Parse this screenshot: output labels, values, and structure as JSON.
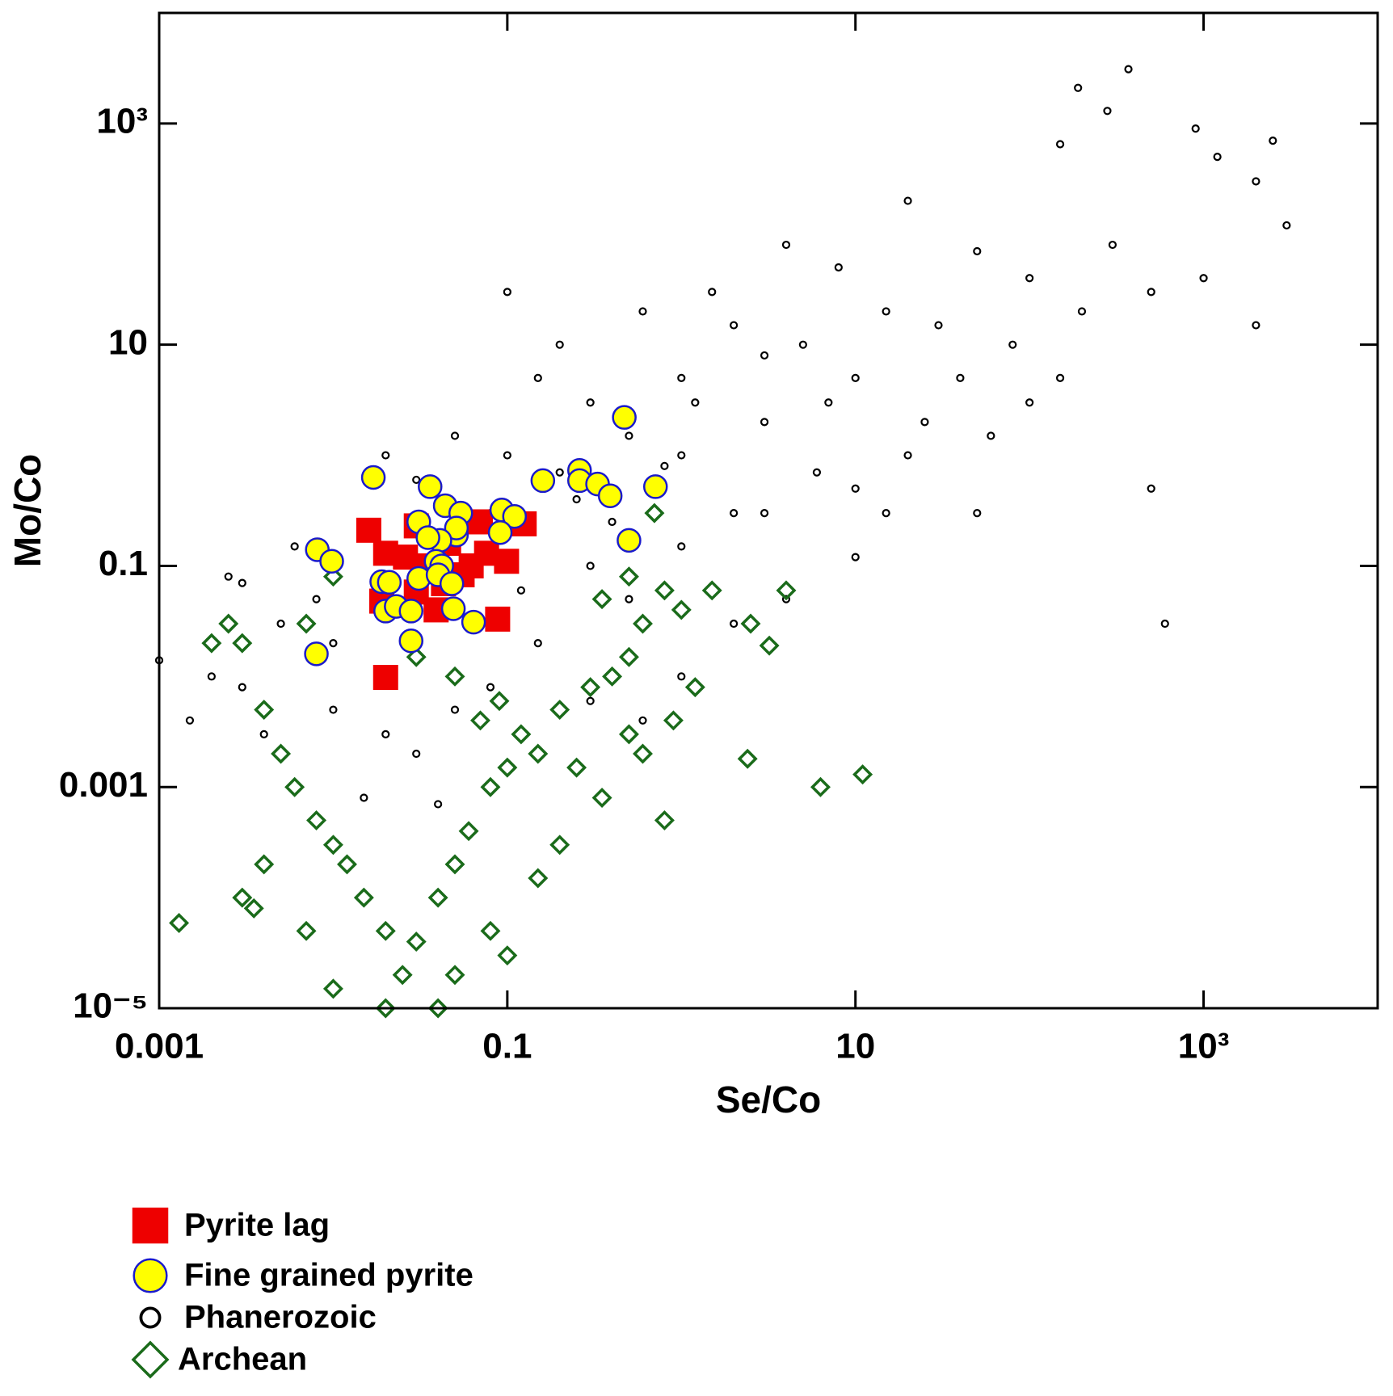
{
  "chart_data": {
    "type": "scatter",
    "x_label": "Se/Co",
    "y_label": "Mo/Co",
    "xscale": "log",
    "yscale": "log",
    "xlim": [
      0.001,
      10000
    ],
    "ylim": [
      1e-05,
      10000
    ],
    "xticks": [
      0.001,
      0.1,
      10,
      {
        "value": 1000,
        "label": "10³"
      }
    ],
    "yticks": [
      {
        "value": 1e-05,
        "label": "10⁻⁵"
      },
      0.001,
      0.1,
      10,
      {
        "value": 1000,
        "label": "10³"
      }
    ],
    "series": [
      {
        "name": "Pyrite lag",
        "marker": "square",
        "color": "#ee0000",
        "edgecolor": "#ee0000",
        "zorder": 3,
        "x": [
          0.016,
          0.02,
          0.03,
          0.046,
          0.07,
          0.125,
          0.076,
          0.099,
          0.026,
          0.034,
          0.062,
          0.043,
          0.019,
          0.039,
          0.088,
          0.02,
          0.03,
          0.055
        ],
        "values": [
          0.21,
          0.13,
          0.23,
          0.16,
          0.25,
          0.24,
          0.13,
          0.11,
          0.12,
          0.1,
          0.1,
          0.069,
          0.048,
          0.04,
          0.033,
          0.0098,
          0.058,
          0.083
        ]
      },
      {
        "name": "Fine grained pyrite",
        "marker": "circle",
        "color": "#ffff00",
        "edgecolor": "#1a1acc",
        "zorder": 4,
        "x": [
          0.017,
          0.036,
          0.16,
          0.26,
          0.26,
          0.33,
          0.39,
          0.47,
          0.71,
          0.5,
          0.0081,
          0.0098,
          0.031,
          0.044,
          0.054,
          0.051,
          0.051,
          0.041,
          0.093,
          0.11,
          0.091,
          0.035,
          0.039,
          0.042,
          0.031,
          0.04,
          0.048,
          0.019,
          0.021,
          0.02,
          0.023,
          0.028,
          0.049,
          0.064,
          0.028,
          0.008
        ],
        "values": [
          0.63,
          0.52,
          0.59,
          0.73,
          0.59,
          0.55,
          0.43,
          2.2,
          0.52,
          0.17,
          0.14,
          0.11,
          0.25,
          0.35,
          0.3,
          0.19,
          0.22,
          0.17,
          0.32,
          0.28,
          0.2,
          0.18,
          0.11,
          0.1,
          0.077,
          0.083,
          0.069,
          0.072,
          0.071,
          0.039,
          0.043,
          0.039,
          0.041,
          0.031,
          0.021,
          0.016
        ]
      },
      {
        "name": "Phanerozoic",
        "marker": "circle",
        "color": "none",
        "edgecolor": "#000000",
        "zorder": 1,
        "x": [
          370,
          190,
          280,
          150,
          900,
          2500,
          2000,
          1200,
          3000,
          8,
          20,
          50,
          100,
          300,
          15,
          5,
          30,
          80,
          200,
          500,
          1000,
          1,
          2,
          3,
          10,
          40,
          150,
          60,
          20,
          6,
          3,
          1,
          0.5,
          0.3,
          0.2,
          0.1,
          0.08,
          0.05,
          0.03,
          0.02,
          0.2,
          0.1,
          0.15,
          1.5,
          4,
          0.6,
          0.3,
          0.5,
          1,
          2,
          4,
          10,
          50,
          500,
          600,
          0.005,
          0.003,
          0.004,
          0.002,
          0.0015,
          0.001,
          0.01,
          0.02,
          0.03,
          0.05,
          0.08,
          0.15,
          0.3,
          0.6,
          1,
          2,
          0.04,
          0.015,
          0.01,
          0.008,
          0.006,
          0.003,
          0.0025,
          10,
          25,
          100,
          7,
          0.8,
          0.4,
          0.25,
          0.12,
          1.2,
          3,
          15,
          2000
        ],
        "values": [
          3100,
          2100,
          1300,
          650,
          900,
          700,
          300,
          500,
          120,
          50,
          200,
          70,
          40,
          80,
          20,
          10,
          15,
          10,
          20,
          30,
          40,
          5,
          15,
          8,
          5,
          5,
          5,
          1.5,
          1,
          0.7,
          2,
          1,
          1.5,
          3,
          0.7,
          1,
          0.3,
          1.5,
          0.6,
          1,
          10,
          30,
          5,
          30,
          80,
          20,
          0.1,
          0.05,
          0.15,
          0.3,
          0.05,
          0.12,
          0.3,
          0.5,
          0.03,
          0.03,
          0.008,
          0.003,
          0.01,
          0.004,
          0.014,
          0.005,
          0.003,
          0.002,
          0.005,
          0.008,
          0.02,
          0.006,
          0.004,
          0.01,
          0.03,
          0.0007,
          0.0008,
          0.02,
          0.05,
          0.15,
          0.07,
          0.08,
          0.5,
          2,
          3,
          3,
          0.8,
          0.25,
          0.4,
          0.06,
          3,
          0.3,
          0.3,
          15
        ]
      },
      {
        "name": "Archean",
        "marker": "diamond",
        "color": "none",
        "edgecolor": "#1a6b1a",
        "zorder": 2,
        "x": [
          0.0025,
          0.003,
          0.004,
          0.005,
          0.006,
          0.008,
          0.01,
          0.012,
          0.015,
          0.02,
          0.025,
          0.03,
          0.04,
          0.05,
          0.06,
          0.08,
          0.1,
          0.12,
          0.15,
          0.2,
          0.3,
          0.4,
          0.5,
          0.6,
          0.25,
          0.35,
          0.8,
          0.2,
          0.15,
          0.1,
          0.08,
          0.05,
          0.04,
          0.02,
          0.01,
          0.007,
          0.0013,
          0.0035,
          0.004,
          0.003,
          0.002,
          0.007,
          0.01,
          0.02,
          0.03,
          0.05,
          0.07,
          0.09,
          0.6,
          0.8,
          1,
          2.5,
          3.2,
          2.4,
          6.3,
          11,
          1.2,
          0.9,
          0.5,
          0.35,
          0.5,
          0.7,
          1.5,
          4
        ],
        "values": [
          0.03,
          0.02,
          0.005,
          0.002,
          0.001,
          0.0005,
          0.0003,
          0.0002,
          0.0001,
          5e-05,
          2e-05,
          4e-05,
          0.0001,
          0.0002,
          0.0004,
          0.001,
          0.0015,
          0.003,
          0.002,
          0.005,
          0.008,
          0.01,
          0.003,
          0.002,
          0.0015,
          0.0008,
          0.0005,
          0.0003,
          0.00015,
          3e-05,
          5e-05,
          2e-05,
          1e-05,
          1e-05,
          1.5e-05,
          5e-05,
          5.9e-05,
          8e-05,
          0.0002,
          0.0001,
          0.02,
          0.03,
          0.08,
          0.05,
          0.015,
          0.01,
          0.004,
          0.006,
          0.03,
          0.06,
          0.04,
          0.03,
          0.019,
          0.0018,
          0.001,
          0.0013,
          0.008,
          0.004,
          0.015,
          0.05,
          0.08,
          0.3,
          0.06,
          0.06
        ]
      }
    ]
  }
}
